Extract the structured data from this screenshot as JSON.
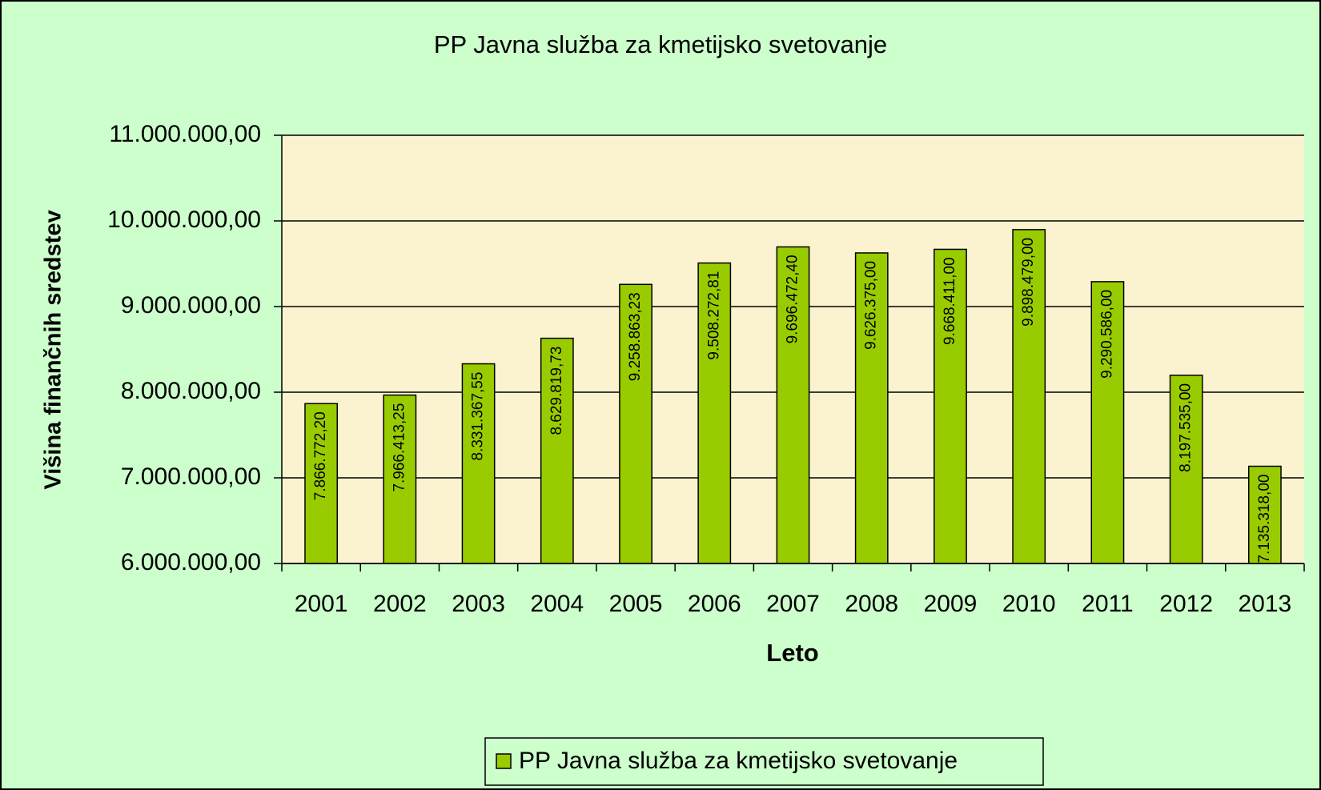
{
  "chart_data": {
    "type": "bar",
    "title": "PP Javna služba za kmetijsko svetovanje",
    "xlabel": "Leto",
    "ylabel": "Višina finančnih sredstev",
    "categories": [
      "2001",
      "2002",
      "2003",
      "2004",
      "2005",
      "2006",
      "2007",
      "2008",
      "2009",
      "2010",
      "2011",
      "2012",
      "2013"
    ],
    "series": [
      {
        "name": "PP Javna služba za kmetijsko svetovanje",
        "color": "#99cc00",
        "values": [
          7866772.2,
          7966413.25,
          8331367.55,
          8629819.73,
          9258863.23,
          9508272.81,
          9696472.4,
          9626375.0,
          9668411.0,
          9898479.0,
          9290586.0,
          8197535.0,
          7135318.0
        ],
        "value_labels": [
          "7.866.772,20",
          "7.966.413,25",
          "8.331.367,55",
          "8.629.819,73",
          "9.258.863,23",
          "9.508.272,81",
          "9.696.472,40",
          "9.626.375,00",
          "9.668.411,00",
          "9.898.479,00",
          "9.290.586,00",
          "8.197.535,00",
          "7.135.318,00"
        ]
      }
    ],
    "ylim": [
      6000000,
      11000000
    ],
    "yticks": [
      {
        "value": 6000000,
        "label": "6.000.000,00"
      },
      {
        "value": 7000000,
        "label": "7.000.000,00"
      },
      {
        "value": 8000000,
        "label": "8.000.000,00"
      },
      {
        "value": 9000000,
        "label": "9.000.000,00"
      },
      {
        "value": 10000000,
        "label": "10.000.000,00"
      },
      {
        "value": 11000000,
        "label": "11.000.000,00"
      }
    ],
    "grid": true,
    "legend": "bottom"
  }
}
